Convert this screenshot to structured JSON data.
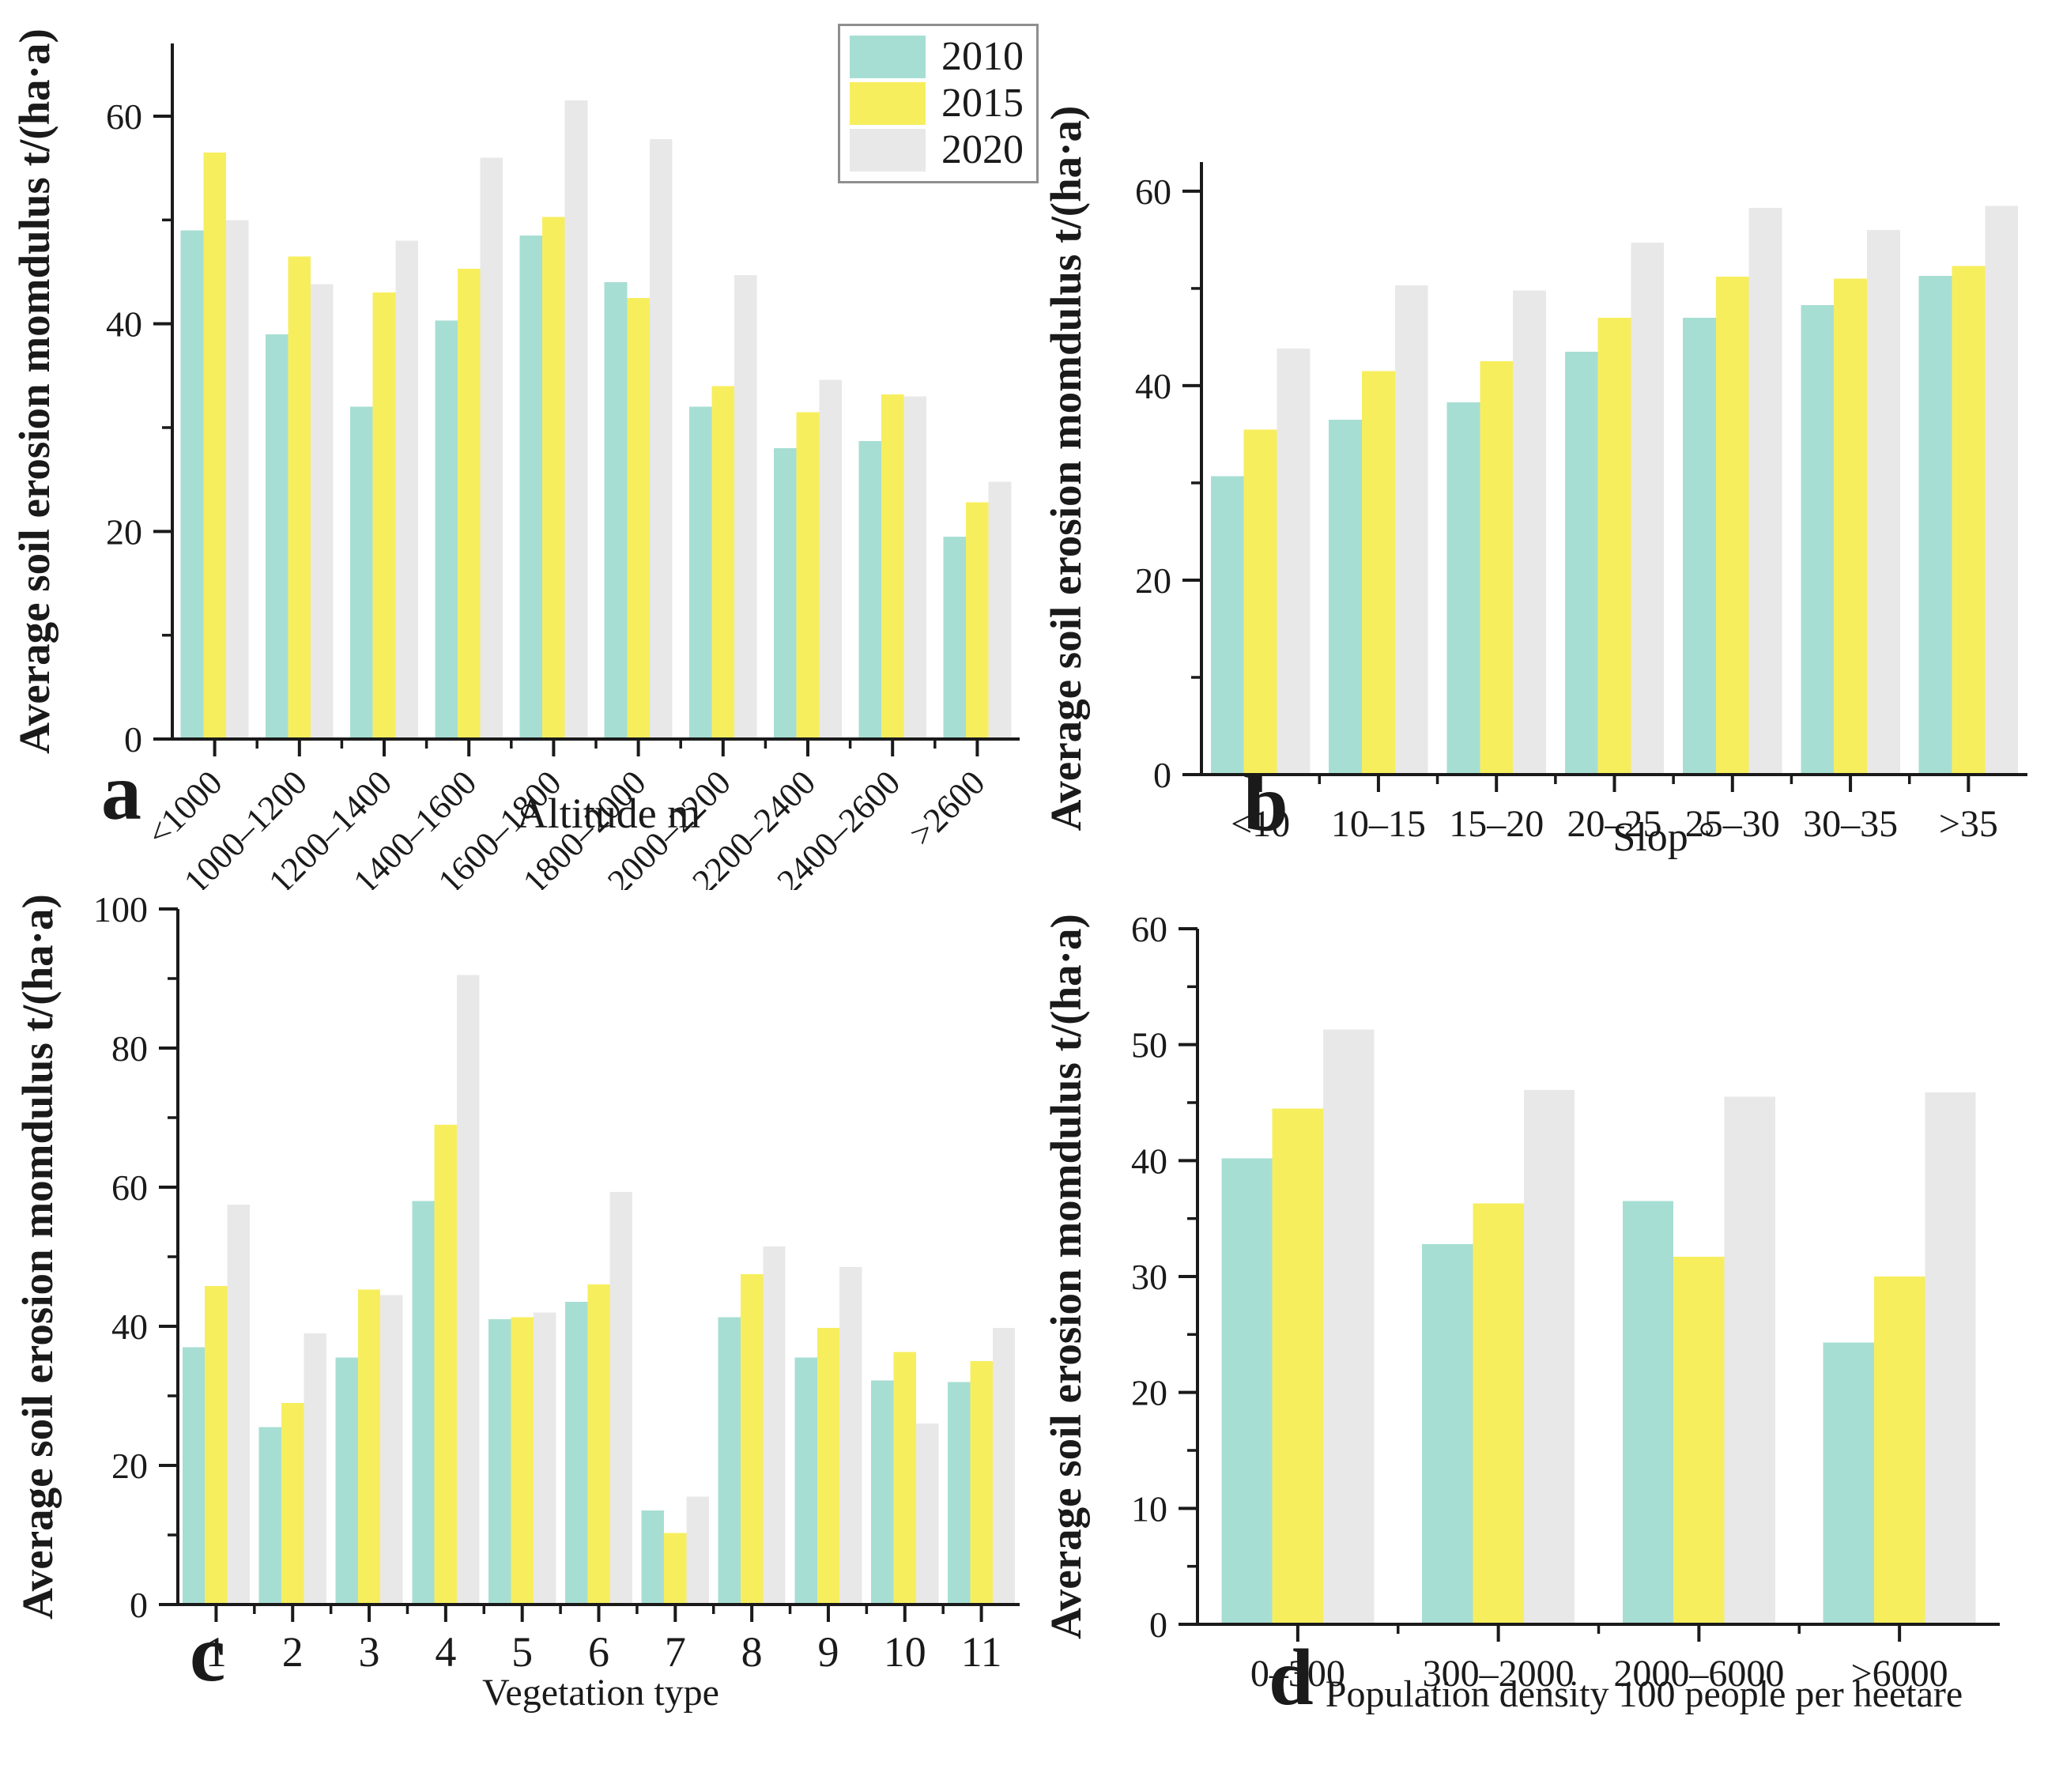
{
  "figure": {
    "ylabel_shared": "Average soil erosion momdulus t/(ha·a)"
  },
  "legend": {
    "position": "top-right-of-panel-a",
    "items": [
      {
        "label": "2010",
        "color": "#a7ded3"
      },
      {
        "label": "2015",
        "color": "#f7ee5e"
      },
      {
        "label": "2020",
        "color": "#e8e8e8"
      }
    ]
  },
  "chart_data": [
    {
      "panel_label": "a",
      "type": "bar",
      "title": "",
      "xlabel": "Altitude m",
      "ylabel": "Average soil erosion momdulus t/(ha·a)",
      "categories": [
        "<1000",
        "1000–1200",
        "1200–1400",
        "1400–1600",
        "1600–1800",
        "1800–2000",
        "2000–2200",
        "2200–2400",
        "2400–2600",
        ">2600"
      ],
      "series": [
        {
          "name": "2010",
          "values": [
            49.0,
            39.0,
            32.0,
            40.3,
            48.5,
            44.0,
            32.0,
            28.0,
            28.7,
            19.5
          ]
        },
        {
          "name": "2015",
          "values": [
            56.5,
            46.5,
            43.0,
            45.3,
            50.3,
            42.5,
            34.0,
            31.5,
            33.2,
            22.8
          ]
        },
        {
          "name": "2020",
          "values": [
            50.0,
            43.8,
            48.0,
            56.0,
            61.5,
            57.8,
            44.7,
            34.6,
            33.0,
            24.8
          ]
        }
      ],
      "ylim": [
        0,
        67
      ],
      "yticks": [
        0,
        20,
        40,
        60
      ],
      "yminor": [
        10,
        30,
        50
      ],
      "grid": false,
      "legend_shown": true,
      "xtick_rotation": -45
    },
    {
      "panel_label": "b",
      "type": "bar",
      "title": "",
      "xlabel": "Slop °",
      "ylabel": "Average soil erosion momdulus t/(ha·a)",
      "categories": [
        "<10",
        "10–15",
        "15–20",
        "20–25",
        "25–30",
        "30–35",
        ">35"
      ],
      "series": [
        {
          "name": "2010",
          "values": [
            30.7,
            36.5,
            38.3,
            43.5,
            47.0,
            48.3,
            51.3
          ]
        },
        {
          "name": "2015",
          "values": [
            35.5,
            41.5,
            42.5,
            47.0,
            51.2,
            51.0,
            52.3
          ]
        },
        {
          "name": "2020",
          "values": [
            43.8,
            50.3,
            49.8,
            54.7,
            58.3,
            56.0,
            58.5
          ]
        }
      ],
      "ylim": [
        0,
        63
      ],
      "yticks": [
        0,
        20,
        40,
        60
      ],
      "yminor": [
        10,
        30,
        50
      ],
      "grid": false,
      "legend_shown": false,
      "xtick_rotation": 0
    },
    {
      "panel_label": "c",
      "type": "bar",
      "title": "",
      "xlabel": "Vegetation type",
      "ylabel": "Average soil erosion momdulus t/(ha·a)",
      "categories": [
        "1",
        "2",
        "3",
        "4",
        "5",
        "6",
        "7",
        "8",
        "9",
        "10",
        "11"
      ],
      "series": [
        {
          "name": "2010",
          "values": [
            37.0,
            25.5,
            35.5,
            58.0,
            41.0,
            43.5,
            13.5,
            41.3,
            35.5,
            32.2,
            32.0
          ]
        },
        {
          "name": "2015",
          "values": [
            45.8,
            29.0,
            45.3,
            69.0,
            41.3,
            46.0,
            10.3,
            47.5,
            39.8,
            36.3,
            35.0
          ]
        },
        {
          "name": "2020",
          "values": [
            57.5,
            39.0,
            44.5,
            90.5,
            42.0,
            59.3,
            15.5,
            51.5,
            48.5,
            26.0,
            39.8
          ]
        }
      ],
      "ylim": [
        0,
        100
      ],
      "yticks": [
        0,
        20,
        40,
        60,
        80,
        100
      ],
      "yminor": [
        10,
        30,
        50,
        70,
        90
      ],
      "grid": false,
      "legend_shown": false,
      "xtick_rotation": 0
    },
    {
      "panel_label": "d",
      "type": "bar",
      "title": "",
      "xlabel": "Population density 100 people per heetare",
      "ylabel": "Average soil erosion momdulus t/(ha·a)",
      "categories": [
        "0–300",
        "300–2000",
        "2000–6000",
        ">6000"
      ],
      "series": [
        {
          "name": "2010",
          "values": [
            40.2,
            32.8,
            36.5,
            24.3
          ]
        },
        {
          "name": "2015",
          "values": [
            44.5,
            36.3,
            31.7,
            30.0
          ]
        },
        {
          "name": "2020",
          "values": [
            51.3,
            46.1,
            45.5,
            45.9
          ]
        }
      ],
      "ylim": [
        0,
        60
      ],
      "yticks": [
        0,
        10,
        20,
        30,
        40,
        50,
        60
      ],
      "yminor": [
        5,
        15,
        25,
        35,
        45,
        55
      ],
      "grid": false,
      "legend_shown": false,
      "xtick_rotation": 0
    }
  ]
}
